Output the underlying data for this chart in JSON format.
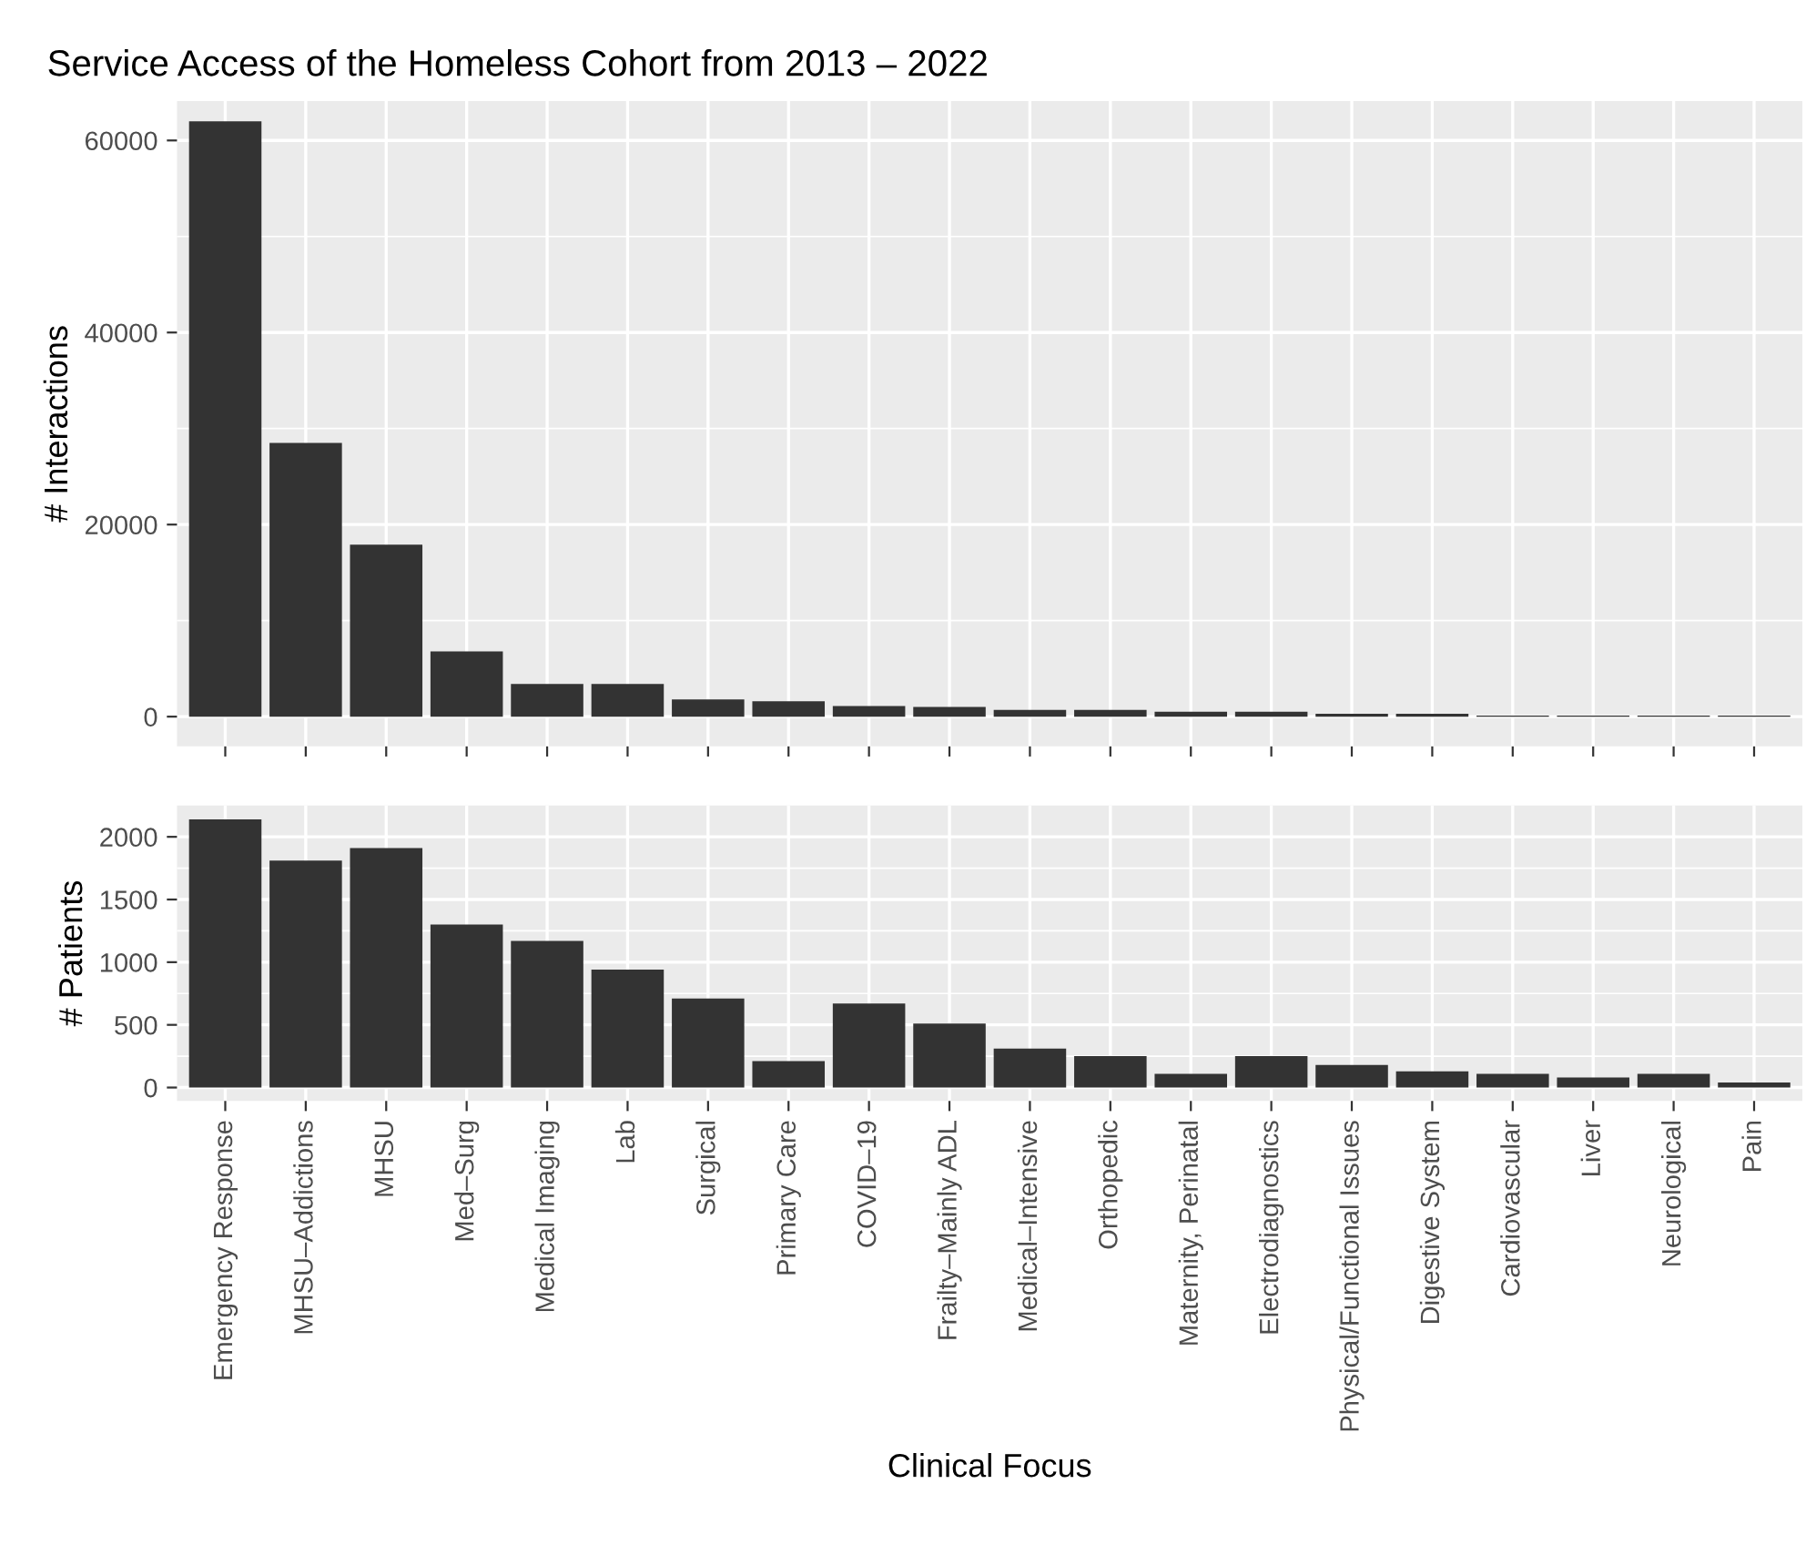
{
  "chart_data": [
    {
      "type": "bar",
      "title": "Service Access of the Homeless Cohort from 2013 – 2022",
      "ylabel": "# Interactions",
      "categories": [
        null,
        null,
        null,
        null,
        null,
        null,
        null,
        null,
        null,
        null,
        null,
        null,
        null,
        null,
        null,
        null,
        null,
        null,
        null,
        null
      ],
      "values": [
        62000,
        28500,
        17900,
        6800,
        3400,
        3400,
        1800,
        1600,
        1100,
        1000,
        700,
        700,
        500,
        500,
        300,
        300,
        100,
        100,
        100,
        100
      ],
      "color": "#333333",
      "ylim": [
        -3100,
        64100
      ],
      "yticks": [
        0,
        20000,
        40000,
        60000
      ],
      "grid": true,
      "tick_labels": "y"
    },
    {
      "type": "bar",
      "xlabel": "Clinical Focus",
      "ylabel": "# Patients",
      "categories": [
        "Emergency Response",
        "MHSU–Addictions",
        "MHSU",
        "Med–Surg",
        "Medical Imaging",
        "Lab",
        "Surgical",
        "Primary Care",
        "COVID–19",
        "Frailty–Mainly ADL",
        "Medical–Intensive",
        "Orthopedic",
        "Maternity, Perinatal",
        "Electrodiagnostics",
        "Physical/Functional Issues",
        "Digestive System",
        "Cardiovascular",
        "Liver",
        "Neurological",
        "Pain"
      ],
      "values": [
        2140,
        1810,
        1910,
        1300,
        1170,
        940,
        710,
        210,
        670,
        510,
        310,
        250,
        110,
        250,
        180,
        130,
        110,
        80,
        110,
        40
      ],
      "color": "#333333",
      "ylim": [
        -107,
        2250
      ],
      "yticks": [
        0,
        500,
        1000,
        1500,
        2000
      ],
      "grid": true
    }
  ]
}
